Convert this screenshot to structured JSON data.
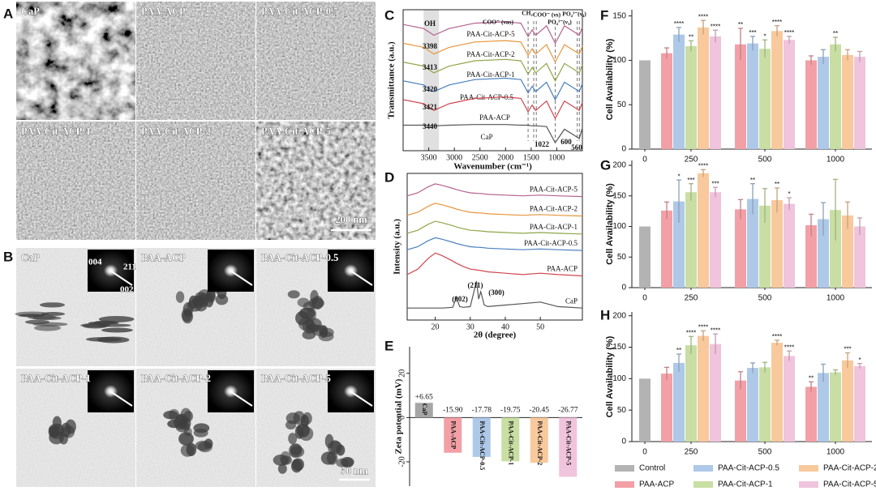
{
  "panel_labels": [
    "A",
    "B",
    "C",
    "D",
    "E",
    "F",
    "G",
    "H"
  ],
  "sem_images": {
    "labels": [
      "CaP",
      "PAA-ACP",
      "PAA-Cit-ACP-0.5",
      "PAA-Cit-ACP-1",
      "PAA-Cit-ACP-2",
      "PAA-Cit-ACP-5"
    ],
    "scale_bar": "200 nm"
  },
  "tem_images": {
    "labels": [
      "CaP",
      "PAA-ACP",
      "PAA-Cit-ACP-0.5",
      "PAA-Cit-ACP-1",
      "PAA-Cit-ACP-2",
      "PAA-Cit-ACP-5"
    ],
    "diffraction_indices": [
      "004",
      "211",
      "002"
    ],
    "scale_bar": "50 nm"
  },
  "chart_data": [
    {
      "type": "line",
      "xlabel": "Wavenumber (cm⁻¹)",
      "ylabel": "Transmittance (a.u.)",
      "x": [
        4000,
        3600,
        3400,
        3100,
        2600,
        2000,
        1700,
        1560,
        1480,
        1410,
        1200,
        1030,
        850,
        600,
        560,
        500
      ],
      "xlim": [
        4000,
        500
      ],
      "xticks": [
        3500,
        3000,
        2500,
        2000,
        1500,
        1000
      ],
      "ylim": [
        0,
        10.5
      ],
      "series": [
        {
          "name": "PAA-Cit-ACP-5",
          "color": "#b5628f",
          "values": [
            9.4,
            9.1,
            8.6,
            9.1,
            9.5,
            9.6,
            9.5,
            8.5,
            9.0,
            8.6,
            9.3,
            8.0,
            9.3,
            8.7,
            8.6,
            9.2
          ]
        },
        {
          "name": "PAA-Cit-ACP-2",
          "color": "#e6963a",
          "values": [
            8.0,
            7.7,
            7.2,
            7.7,
            8.1,
            8.2,
            8.1,
            7.1,
            7.6,
            7.2,
            7.9,
            6.6,
            7.9,
            7.3,
            7.2,
            7.8
          ]
        },
        {
          "name": "PAA-Cit-ACP-1",
          "color": "#8ea648",
          "values": [
            6.6,
            6.3,
            5.8,
            6.3,
            6.7,
            6.8,
            6.7,
            5.7,
            6.2,
            5.8,
            6.5,
            5.2,
            6.5,
            5.9,
            5.8,
            6.4
          ]
        },
        {
          "name": "PAA-Cit-ACP-0.5",
          "color": "#4a7fbf",
          "values": [
            5.2,
            4.9,
            4.4,
            4.9,
            5.3,
            5.4,
            5.3,
            4.3,
            4.8,
            4.4,
            5.1,
            3.8,
            5.1,
            4.5,
            4.4,
            5.0
          ]
        },
        {
          "name": "PAA-ACP",
          "color": "#d0474f",
          "values": [
            3.8,
            3.5,
            3.0,
            3.5,
            3.9,
            4.0,
            3.9,
            2.9,
            3.4,
            3.0,
            3.7,
            2.4,
            3.7,
            3.1,
            3.0,
            3.6
          ]
        },
        {
          "name": "CaP",
          "color": "#555555",
          "values": [
            1.9,
            1.9,
            1.85,
            1.9,
            1.95,
            1.95,
            1.9,
            1.9,
            1.85,
            1.85,
            1.8,
            0.6,
            1.6,
            1.0,
            0.9,
            1.7
          ]
        }
      ],
      "annotations": [
        "OH",
        "3398",
        "3413",
        "3420",
        "3421",
        "3440",
        "COO⁻ (νas)",
        "CH₂",
        "COO⁻ (νs)",
        "PO₄³⁻(ν₃)",
        "PO₄³⁻(ν₄)",
        "1022",
        "600",
        "560"
      ]
    },
    {
      "type": "line",
      "xlabel": "2θ (degree)",
      "ylabel": "Intensity (a.u.)",
      "x": [
        12,
        15,
        18,
        20,
        22,
        25,
        26,
        27,
        28,
        30,
        31.8,
        32.4,
        33,
        34,
        35,
        40,
        45,
        50,
        55,
        62
      ],
      "xlim": [
        12,
        62
      ],
      "xticks": [
        20,
        30,
        40,
        50
      ],
      "ylim": [
        0,
        9.8
      ],
      "series": [
        {
          "name": "PAA-Cit-ACP-5",
          "color": "#b5628f",
          "values": [
            8.3,
            8.5,
            8.9,
            9.1,
            9.0,
            8.8,
            8.72,
            8.66,
            8.6,
            8.5,
            8.47,
            8.46,
            8.45,
            8.43,
            8.4,
            8.35,
            8.3,
            8.35,
            8.3,
            8.25
          ]
        },
        {
          "name": "PAA-Cit-ACP-2",
          "color": "#e6963a",
          "values": [
            7.0,
            7.2,
            7.6,
            7.8,
            7.7,
            7.5,
            7.42,
            7.36,
            7.3,
            7.2,
            7.17,
            7.16,
            7.15,
            7.13,
            7.1,
            7.05,
            7.0,
            7.05,
            7.0,
            6.95
          ]
        },
        {
          "name": "PAA-Cit-ACP-1",
          "color": "#8ea648",
          "values": [
            5.8,
            6.0,
            6.4,
            6.6,
            6.5,
            6.3,
            6.22,
            6.16,
            6.1,
            6.0,
            5.97,
            5.96,
            5.95,
            5.93,
            5.9,
            5.85,
            5.8,
            5.85,
            5.8,
            5.75
          ]
        },
        {
          "name": "PAA-Cit-ACP-0.5",
          "color": "#4a7fbf",
          "values": [
            4.7,
            4.9,
            5.3,
            5.5,
            5.4,
            5.2,
            5.12,
            5.06,
            5.0,
            4.9,
            4.87,
            4.86,
            4.85,
            4.83,
            4.8,
            4.75,
            4.7,
            4.75,
            4.7,
            4.65
          ]
        },
        {
          "name": "PAA-ACP",
          "color": "#d0474f",
          "values": [
            3.04,
            3.4,
            4.12,
            4.48,
            4.3,
            3.94,
            3.8,
            3.69,
            3.58,
            3.4,
            3.35,
            3.33,
            3.31,
            3.27,
            3.22,
            3.13,
            3.04,
            3.13,
            3.04,
            2.95
          ]
        },
        {
          "name": "CaP",
          "color": "#555555",
          "values": [
            0.8,
            0.8,
            0.8,
            0.8,
            0.8,
            0.85,
            1.5,
            0.9,
            0.85,
            0.9,
            2.6,
            1.4,
            1.9,
            1.0,
            0.9,
            1.0,
            1.1,
            1.2,
            0.9,
            0.8
          ]
        }
      ],
      "annotations": [
        "(002)",
        "(211)",
        "(300)"
      ]
    },
    {
      "type": "bar",
      "ylabel": "Zeta potential (mV)",
      "categories": [
        "CaP",
        "PAA-ACP",
        "PAA-Cit-ACP-0.5",
        "PAA-Cit-ACP-1",
        "PAA-Cit-ACP-2",
        "PAA-Cit-ACP-5"
      ],
      "values": [
        6.65,
        -15.9,
        -17.78,
        -19.75,
        -20.45,
        -26.77
      ],
      "value_labels": [
        "+6.65",
        "-15.90",
        "-17.78",
        "-19.75",
        "-20.45",
        "-26.77"
      ],
      "colors": [
        "#a6a6a6",
        "#f2a0a6",
        "#aec8e8",
        "#c8dea3",
        "#f8c99c",
        "#f0c4dc"
      ],
      "ylim": [
        -31,
        32
      ],
      "yticks": [
        20,
        0,
        -20
      ]
    },
    {
      "type": "grouped_bar",
      "ylabel": "Cell Availability (%)",
      "categories": [
        "0",
        "250",
        "500",
        "1000"
      ],
      "ylim": [
        0,
        157
      ],
      "yticks": [
        0,
        50,
        100,
        150
      ],
      "series": [
        {
          "name": "Control",
          "color": "#b3b3b3",
          "values": [
            100,
            null,
            null,
            null
          ]
        },
        {
          "name": "PAA-ACP",
          "color": "#f2a0a6",
          "values": [
            null,
            108,
            118,
            100
          ],
          "errors": [
            null,
            6,
            18,
            5
          ],
          "significance": [
            null,
            null,
            "**",
            null
          ]
        },
        {
          "name": "PAA-Cit-ACP-0.5",
          "color": "#aec8e8",
          "values": [
            null,
            129,
            119,
            104
          ],
          "errors": [
            null,
            8,
            8,
            8
          ],
          "significance": [
            null,
            "****",
            "***",
            null
          ]
        },
        {
          "name": "PAA-Cit-ACP-1",
          "color": "#c8dea3",
          "values": [
            null,
            116,
            113,
            118
          ],
          "errors": [
            null,
            6,
            10,
            8
          ],
          "significance": [
            null,
            "**",
            "*",
            "**"
          ]
        },
        {
          "name": "PAA-Cit-ACP-2",
          "color": "#f8c99c",
          "values": [
            null,
            137,
            133,
            106
          ],
          "errors": [
            null,
            8,
            6,
            6
          ],
          "significance": [
            null,
            "****",
            "****",
            null
          ]
        },
        {
          "name": "PAA-Cit-ACP-5",
          "color": "#f0c4dc",
          "values": [
            null,
            127,
            123,
            104
          ],
          "errors": [
            null,
            7,
            4,
            6
          ],
          "significance": [
            null,
            "****",
            "****",
            null
          ]
        }
      ]
    },
    {
      "type": "grouped_bar",
      "ylabel": "Cell Availability (%)",
      "categories": [
        "0",
        "250",
        "500",
        "1000"
      ],
      "ylim": [
        0,
        208
      ],
      "yticks": [
        0,
        50,
        100,
        150,
        200
      ],
      "series": [
        {
          "color": "#b3b3b3",
          "values": [
            100,
            null,
            null,
            null
          ]
        },
        {
          "color": "#f2a0a6",
          "values": [
            null,
            126,
            128,
            102
          ],
          "errors": [
            null,
            14,
            16,
            18
          ],
          "significance": [
            null,
            null,
            null,
            null
          ]
        },
        {
          "color": "#aec8e8",
          "values": [
            null,
            141,
            145,
            112
          ],
          "errors": [
            null,
            35,
            25,
            27
          ],
          "significance": [
            null,
            "*",
            "**",
            null
          ]
        },
        {
          "color": "#c8dea3",
          "values": [
            null,
            156,
            134,
            127
          ],
          "errors": [
            null,
            14,
            28,
            50
          ],
          "significance": [
            null,
            "***",
            null,
            null
          ]
        },
        {
          "color": "#f8c99c",
          "values": [
            null,
            187,
            143,
            118
          ],
          "errors": [
            null,
            6,
            20,
            22
          ],
          "significance": [
            null,
            "****",
            "**",
            null
          ]
        },
        {
          "color": "#f0c4dc",
          "values": [
            null,
            156,
            137,
            100
          ],
          "errors": [
            null,
            8,
            10,
            14
          ],
          "significance": [
            null,
            "***",
            "*",
            null
          ]
        }
      ]
    },
    {
      "type": "grouped_bar",
      "ylabel": "Cell Availability (%)",
      "categories": [
        "0",
        "250",
        "500",
        "1000"
      ],
      "ylim": [
        0,
        206
      ],
      "yticks": [
        0,
        50,
        100,
        150,
        200
      ],
      "series": [
        {
          "color": "#b3b3b3",
          "values": [
            100,
            null,
            null,
            null
          ]
        },
        {
          "color": "#f2a0a6",
          "values": [
            null,
            108,
            97,
            87
          ],
          "errors": [
            null,
            10,
            14,
            8
          ],
          "significance": [
            null,
            null,
            null,
            "**"
          ]
        },
        {
          "color": "#aec8e8",
          "values": [
            null,
            125,
            117,
            109
          ],
          "errors": [
            null,
            14,
            8,
            14
          ],
          "significance": [
            null,
            "**",
            null,
            null
          ]
        },
        {
          "color": "#c8dea3",
          "values": [
            null,
            153,
            118,
            110
          ],
          "errors": [
            null,
            14,
            8,
            4
          ],
          "significance": [
            null,
            "****",
            null,
            null
          ]
        },
        {
          "color": "#f8c99c",
          "values": [
            null,
            168,
            157,
            129
          ],
          "errors": [
            null,
            8,
            4,
            12
          ],
          "significance": [
            null,
            "****",
            "****",
            "***"
          ]
        },
        {
          "color": "#f0c4dc",
          "values": [
            null,
            155,
            136,
            120
          ],
          "errors": [
            null,
            16,
            8,
            4
          ],
          "significance": [
            null,
            "****",
            "****",
            "*"
          ]
        }
      ]
    }
  ]
}
